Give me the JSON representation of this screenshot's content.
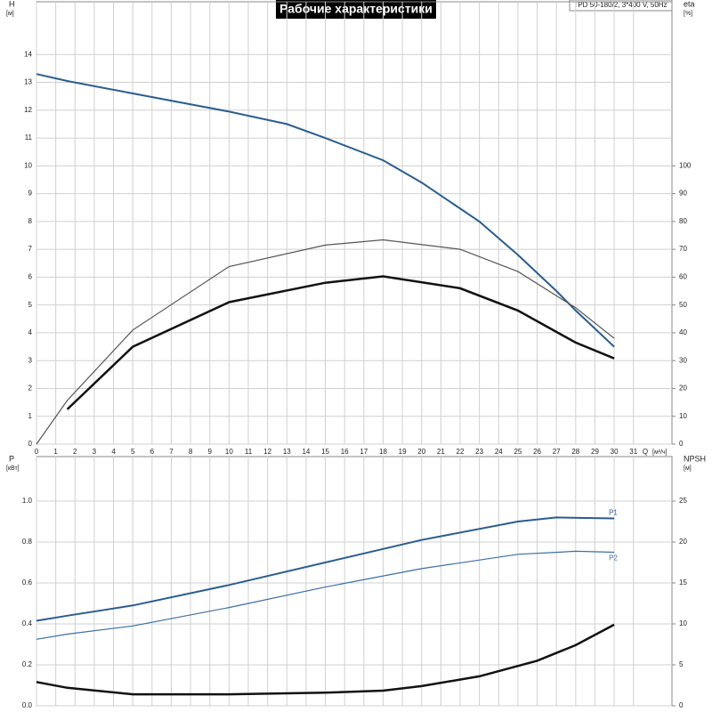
{
  "chart_data": [
    {
      "type": "line",
      "title": "Рабочие характеристики",
      "subtitle": "TPD 50-180/2, 3*400 V, 50Hz",
      "x_label": "Q",
      "x_unit": "[м³/ч]",
      "y_label": "H",
      "y_unit": "[м]",
      "y2_label": "eta",
      "y2_unit": "[%]",
      "xlim": [
        0,
        33
      ],
      "xticks": [
        0,
        1,
        2,
        3,
        4,
        5,
        6,
        7,
        8,
        9,
        10,
        11,
        12,
        13,
        14,
        15,
        16,
        17,
        18,
        19,
        20,
        21,
        22,
        23,
        24,
        25,
        26,
        27,
        28,
        29,
        30,
        31
      ],
      "ylim": [
        0,
        15
      ],
      "yticks": [
        0,
        1,
        2,
        3,
        4,
        5,
        6,
        7,
        8,
        9,
        10,
        11,
        12,
        13,
        14
      ],
      "y2lim": [
        0,
        150
      ],
      "y2ticks": [
        0,
        10,
        20,
        30,
        40,
        50,
        60,
        70,
        80,
        90,
        100
      ],
      "grid": true,
      "series": [
        {
          "color": "#2a5d8f",
          "width": 2,
          "x": [
            0,
            1.6,
            5,
            10,
            13,
            15,
            18,
            20,
            23,
            25,
            27,
            28,
            30
          ],
          "values": [
            13.3,
            13.05,
            12.6,
            11.95,
            11.5,
            11.0,
            10.2,
            9.4,
            8.0,
            6.8,
            5.5,
            4.8,
            3.5
          ]
        },
        {
          "color": "#555555",
          "width": 1.2,
          "axis": "y2",
          "x": [
            0,
            1.6,
            5,
            10,
            15,
            18,
            22,
            25,
            28,
            30
          ],
          "values": [
            0,
            15.7,
            41,
            63.8,
            71.5,
            73.4,
            70,
            62,
            49,
            38
          ]
        },
        {
          "color": "#111111",
          "width": 2.5,
          "axis": "y2",
          "x": [
            1.6,
            5,
            10,
            15,
            18,
            22,
            25,
            28,
            30
          ],
          "values": [
            12.5,
            35,
            51,
            58,
            60.3,
            56,
            48,
            36.5,
            30.8
          ]
        }
      ]
    },
    {
      "type": "line",
      "y_label": "P",
      "y_unit": "[кВт]",
      "y2_label": "NPSH",
      "y2_unit": "[м]",
      "xlim": [
        0,
        33
      ],
      "ylim": [
        0,
        1.2
      ],
      "yticks": [
        {
          "value": 0,
          "label": "0.0"
        },
        0.2,
        0.4,
        0.6,
        0.8,
        {
          "value": 1,
          "label": "1.0"
        }
      ],
      "y2lim": [
        0,
        30
      ],
      "y2ticks": [
        0,
        5,
        10,
        15,
        20,
        25
      ],
      "grid": true,
      "series": [
        {
          "name": "P1",
          "color": "#2a5d8f",
          "width": 2,
          "x": [
            0,
            1.6,
            5,
            10,
            15,
            20,
            25,
            27,
            30
          ],
          "values": [
            0.415,
            0.44,
            0.49,
            0.59,
            0.7,
            0.81,
            0.9,
            0.92,
            0.915
          ]
        },
        {
          "name": "P2",
          "color": "#3a6ea5",
          "width": 1.2,
          "x": [
            0,
            1.6,
            5,
            10,
            15,
            20,
            25,
            28,
            30
          ],
          "values": [
            0.325,
            0.35,
            0.39,
            0.48,
            0.58,
            0.67,
            0.74,
            0.755,
            0.75
          ]
        },
        {
          "color": "#111111",
          "width": 2.5,
          "axis": "y2",
          "x": [
            0,
            1.6,
            5,
            10,
            15,
            18,
            20,
            23,
            26,
            28,
            30
          ],
          "values": [
            2.9,
            2.2,
            1.4,
            1.4,
            1.6,
            1.85,
            2.4,
            3.6,
            5.5,
            7.4,
            9.9
          ]
        }
      ]
    }
  ]
}
